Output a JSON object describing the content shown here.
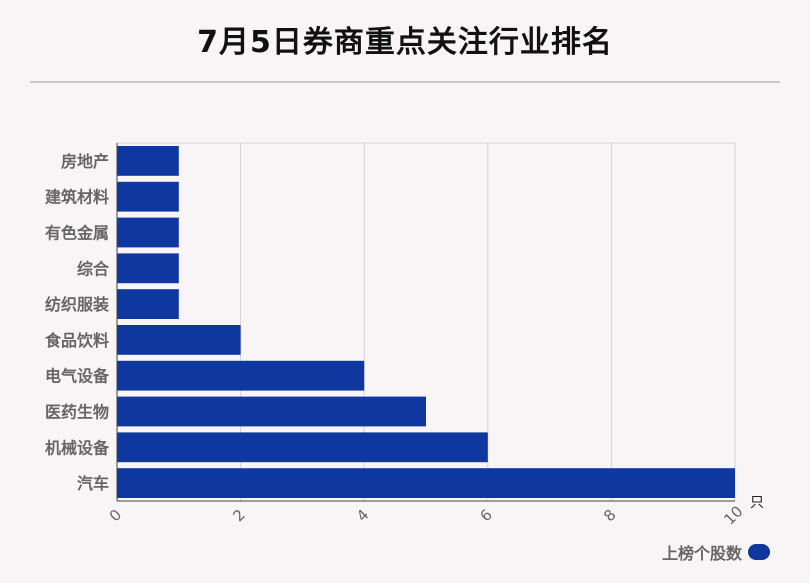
{
  "title": "7月5日券商重点关注行业排名",
  "chart_data": {
    "type": "bar",
    "orientation": "horizontal",
    "categories": [
      "房地产",
      "建筑材料",
      "有色金属",
      "综合",
      "纺织服装",
      "食品饮料",
      "电气设备",
      "医药生物",
      "机械设备",
      "汽车"
    ],
    "series": [
      {
        "name": "上榜个股数",
        "values": [
          1,
          1,
          1,
          1,
          1,
          2,
          4,
          5,
          6,
          10
        ]
      }
    ],
    "xlim": [
      0,
      10
    ],
    "x_ticks": [
      0,
      2,
      4,
      6,
      8,
      10
    ],
    "x_unit": "只",
    "grid": true,
    "legend_position": "bottom-right",
    "bar_color": "#0f37a0"
  }
}
